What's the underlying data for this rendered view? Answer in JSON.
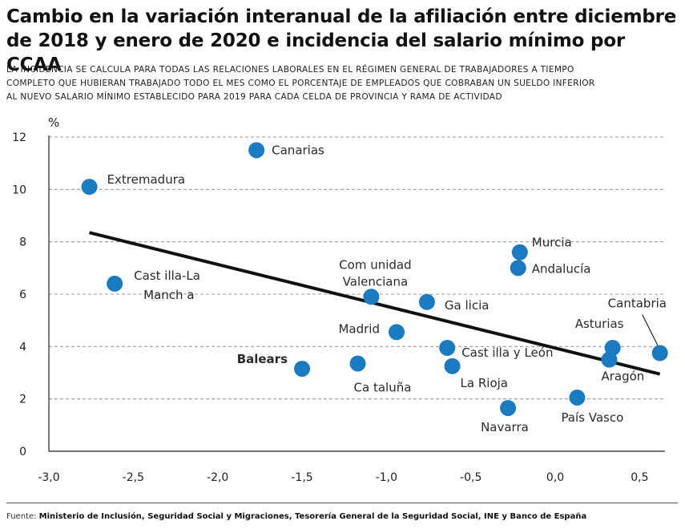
{
  "header": {
    "title_line1": "Cambio en la variación interanual de la afiliación entre diciembre",
    "title_line2": "de 2018 y enero de 2020 e incidencia del salario mínimo por CCAA",
    "subtitle_line1": "LA INCIDENCIA SE CALCULA PARA TODAS LAS RELACIONES LABORALES EN EL RÉGIMEN GENERAL DE TRABAJADORES A TIEMPO",
    "subtitle_line2": "COMPLETO QUE HUBIERAN TRABAJADO TODO EL MES COMO EL PORCENTAJE DE EMPLEADOS QUE COBRABAN UN SUELDO INFERIOR",
    "subtitle_line3": "AL NUEVO SALARIO MÍNIMO ESTABLECIDO PARA 2019 PARA CADA CELDA DE PROVINCIA Y RAMA DE ACTIVIDAD"
  },
  "footer": {
    "source_label": "Fuente:",
    "source_text": "Ministerio de Inclusión, Seguridad Social y Migraciones, Tesorería General de la Seguridad Social, INE y Banco de España"
  },
  "colors": {
    "point": "#1a7bc0",
    "trend": "#111111",
    "grid": "#9a9a9a"
  },
  "chart_data": {
    "type": "scatter",
    "title": "Cambio en la variación interanual de la afiliación entre diciembre de 2018 y enero de 2020 e incidencia del salario mínimo por CCAA",
    "xlabel": "",
    "ylabel": "%",
    "xlim": [
      -3.0,
      0.65
    ],
    "ylim": [
      0,
      12
    ],
    "x_ticks": [
      "-3,0",
      "-2,5",
      "-2,0",
      "-1,5",
      "-1,0",
      "-0,5",
      "0,0",
      "0,5"
    ],
    "x_tick_values": [
      -3.0,
      -2.5,
      -2.0,
      -1.5,
      -1.0,
      -0.5,
      0.0,
      0.5
    ],
    "y_ticks": [
      "0",
      "2",
      "4",
      "6",
      "8",
      "10",
      "12"
    ],
    "y_tick_values": [
      0,
      2,
      4,
      6,
      8,
      10,
      12
    ],
    "grid": "horizontal-dashed",
    "points": [
      {
        "label": "Extremadura",
        "x": -2.76,
        "y": 10.1
      },
      {
        "label": "Canarias",
        "x": -1.77,
        "y": 11.5
      },
      {
        "label": "Cast illa-La Mancha",
        "x": -2.61,
        "y": 6.4
      },
      {
        "label": "Com unidad Valenciana",
        "x": -1.09,
        "y": 5.9
      },
      {
        "label": "Ga licia",
        "x": -0.76,
        "y": 5.7
      },
      {
        "label": "Madrid",
        "x": -0.94,
        "y": 4.55
      },
      {
        "label": "Murcia",
        "x": -0.21,
        "y": 7.6
      },
      {
        "label": "Andalucía",
        "x": -0.22,
        "y": 7.0
      },
      {
        "label": "Cast illa y León",
        "x": -0.64,
        "y": 3.95
      },
      {
        "label": "La Rioja",
        "x": -0.61,
        "y": 3.25
      },
      {
        "label": "Balears",
        "x": -1.5,
        "y": 3.15
      },
      {
        "label": "Ca taluña",
        "x": -1.17,
        "y": 3.35
      },
      {
        "label": "Navarra",
        "x": -0.28,
        "y": 1.65
      },
      {
        "label": "País Vasco",
        "x": 0.13,
        "y": 2.05
      },
      {
        "label": "Asturias",
        "x": 0.34,
        "y": 3.95
      },
      {
        "label": "Aragón",
        "x": 0.32,
        "y": 3.5
      },
      {
        "label": "Cantabria",
        "x": 0.62,
        "y": 3.75
      }
    ],
    "trendline": {
      "x": [
        -2.76,
        0.62
      ],
      "y": [
        8.35,
        2.95
      ]
    }
  }
}
